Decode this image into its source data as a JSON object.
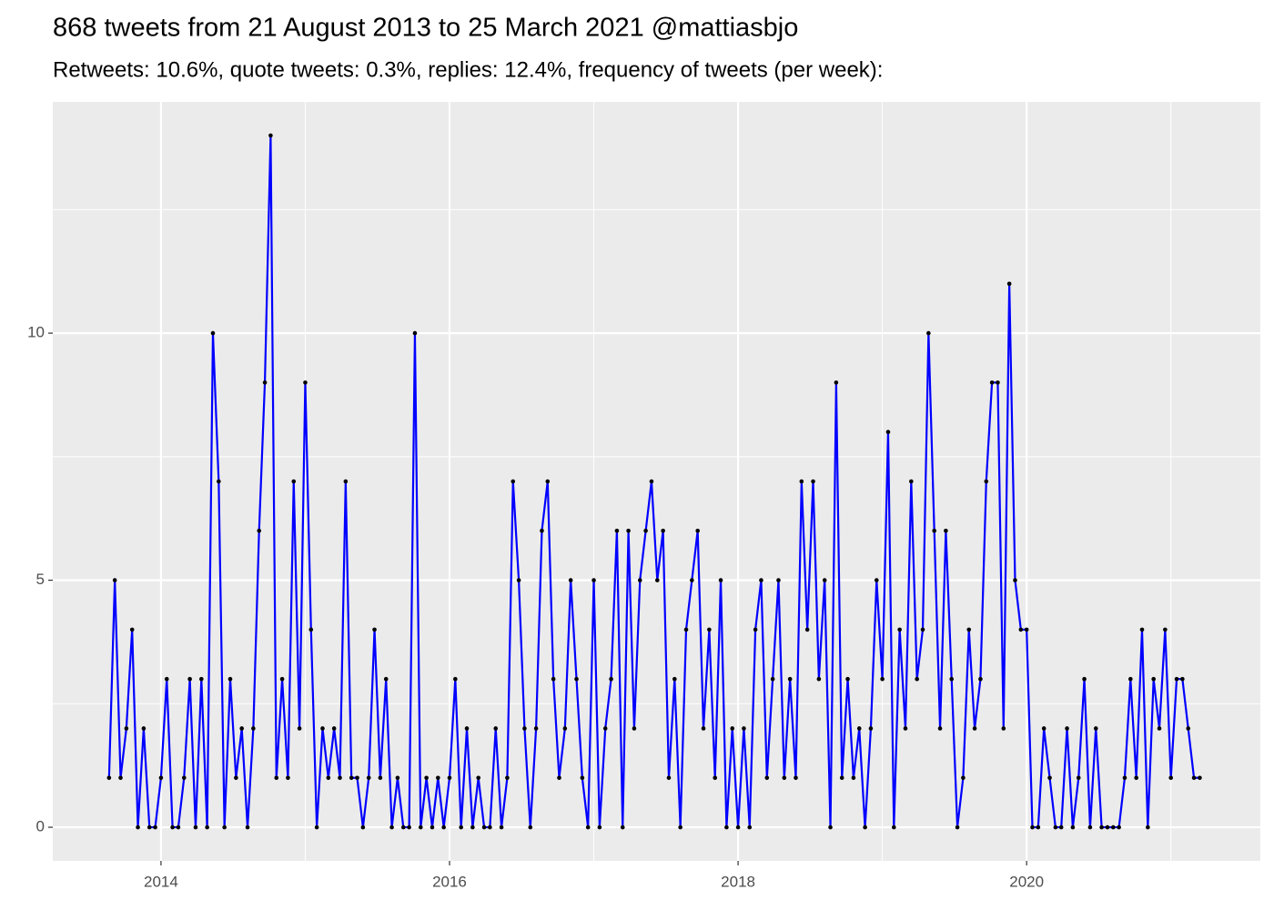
{
  "chart_data": {
    "type": "line",
    "title": "868 tweets from 21 August 2013 to 25 March 2021 @mattiasbjo",
    "subtitle": "Retweets: 10.6%, quote tweets: 0.3%, replies: 12.4%, frequency of tweets (per week):",
    "x": [
      2013.64,
      2013.68,
      2013.72,
      2013.76,
      2013.8,
      2013.84,
      2013.88,
      2013.92,
      2013.96,
      2014,
      2014.04,
      2014.08,
      2014.12,
      2014.16,
      2014.2,
      2014.24,
      2014.28,
      2014.32,
      2014.36,
      2014.4,
      2014.44,
      2014.48,
      2014.52,
      2014.56,
      2014.6,
      2014.64,
      2014.68,
      2014.72,
      2014.76,
      2014.8,
      2014.84,
      2014.88,
      2014.92,
      2014.96,
      2015,
      2015.04,
      2015.08,
      2015.12,
      2015.16,
      2015.2,
      2015.24,
      2015.28,
      2015.32,
      2015.36,
      2015.4,
      2015.44,
      2015.48,
      2015.52,
      2015.56,
      2015.6,
      2015.64,
      2015.68,
      2015.72,
      2015.76,
      2015.8,
      2015.84,
      2015.88,
      2015.92,
      2015.96,
      2016,
      2016.04,
      2016.08,
      2016.12,
      2016.16,
      2016.2,
      2016.24,
      2016.28,
      2016.32,
      2016.36,
      2016.4,
      2016.44,
      2016.48,
      2016.52,
      2016.56,
      2016.6,
      2016.64,
      2016.68,
      2016.72,
      2016.76,
      2016.8,
      2016.84,
      2016.88,
      2016.92,
      2016.96,
      2017,
      2017.04,
      2017.08,
      2017.12,
      2017.16,
      2017.2,
      2017.24,
      2017.28,
      2017.32,
      2017.36,
      2017.4,
      2017.44,
      2017.48,
      2017.52,
      2017.56,
      2017.6,
      2017.64,
      2017.68,
      2017.72,
      2017.76,
      2017.8,
      2017.84,
      2017.88,
      2017.92,
      2017.96,
      2018,
      2018.04,
      2018.08,
      2018.12,
      2018.16,
      2018.2,
      2018.24,
      2018.28,
      2018.32,
      2018.36,
      2018.4,
      2018.44,
      2018.48,
      2018.52,
      2018.56,
      2018.6,
      2018.64,
      2018.68,
      2018.72,
      2018.76,
      2018.8,
      2018.84,
      2018.88,
      2018.92,
      2018.96,
      2019,
      2019.04,
      2019.08,
      2019.12,
      2019.16,
      2019.2,
      2019.24,
      2019.28,
      2019.32,
      2019.36,
      2019.4,
      2019.44,
      2019.48,
      2019.52,
      2019.56,
      2019.6,
      2019.64,
      2019.68,
      2019.72,
      2019.76,
      2019.8,
      2019.84,
      2019.88,
      2019.92,
      2019.96,
      2020,
      2020.04,
      2020.08,
      2020.12,
      2020.16,
      2020.2,
      2020.24,
      2020.28,
      2020.32,
      2020.36,
      2020.4,
      2020.44,
      2020.48,
      2020.52,
      2020.56,
      2020.6,
      2020.64,
      2020.68,
      2020.72,
      2020.76,
      2020.8,
      2020.84,
      2020.88,
      2020.92,
      2020.96,
      2021,
      2021.04,
      2021.08,
      2021.12,
      2021.16,
      2021.2
    ],
    "series": [
      {
        "color": "#0000ff",
        "point_color": "#000000",
        "values": [
          1,
          5,
          1,
          2,
          4,
          0,
          2,
          0,
          0,
          1,
          3,
          0,
          0,
          1,
          3,
          0,
          3,
          0,
          10,
          7,
          0,
          3,
          1,
          2,
          0,
          2,
          6,
          9,
          14,
          1,
          3,
          1,
          7,
          2,
          9,
          4,
          0,
          2,
          1,
          2,
          1,
          7,
          1,
          1,
          0,
          1,
          4,
          1,
          3,
          0,
          1,
          0,
          0,
          10,
          0,
          1,
          0,
          1,
          0,
          1,
          3,
          0,
          2,
          0,
          1,
          0,
          0,
          2,
          0,
          1,
          7,
          5,
          2,
          0,
          2,
          6,
          7,
          3,
          1,
          2,
          5,
          3,
          1,
          0,
          5,
          0,
          2,
          3,
          6,
          0,
          6,
          2,
          5,
          6,
          7,
          5,
          6,
          1,
          3,
          0,
          4,
          5,
          6,
          2,
          4,
          1,
          5,
          0,
          2,
          0,
          2,
          0,
          4,
          5,
          1,
          3,
          5,
          1,
          3,
          1,
          7,
          4,
          7,
          3,
          5,
          0,
          9,
          1,
          3,
          1,
          2,
          0,
          2,
          5,
          3,
          8,
          0,
          4,
          2,
          7,
          3,
          4,
          10,
          6,
          2,
          6,
          3,
          0,
          1,
          4,
          2,
          3,
          7,
          9,
          9,
          2,
          11,
          5,
          4,
          4,
          0,
          0,
          2,
          1,
          0,
          0,
          2,
          0,
          1,
          3,
          0,
          2,
          0,
          0,
          0,
          0,
          1,
          3,
          1,
          4,
          0,
          3,
          2,
          4,
          1,
          3,
          3,
          2,
          1,
          1
        ]
      }
    ],
    "xlim": [
      2013.25,
      2021.62
    ],
    "xticks": [
      2014,
      2016,
      2018,
      2020
    ],
    "x_minor_ticks": [
      2015,
      2017,
      2019,
      2021
    ],
    "ylim": [
      -0.68,
      14.68
    ],
    "yticks": [
      0,
      5,
      10
    ],
    "y_minor_ticks": [
      2.5,
      7.5,
      12.5
    ],
    "grid": true
  }
}
